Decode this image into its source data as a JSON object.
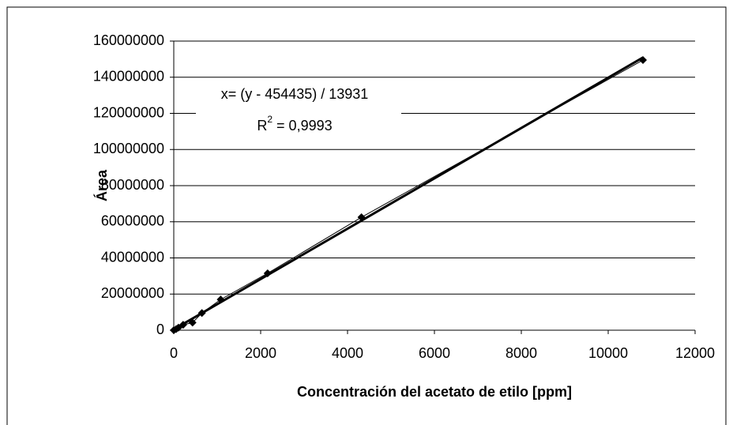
{
  "chart_data": {
    "type": "scatter",
    "x_label": "Concentración del acetato de etilo [ppm]",
    "y_label": "Área",
    "annotations": {
      "equation": "x= (y - 454435) / 13931",
      "r2": {
        "text": "R",
        "sup": "2",
        "rest": " = 0,9993"
      }
    },
    "trendline": {
      "slope": 13931,
      "intercept": 454435
    },
    "series": [
      {
        "name": "Área",
        "color": "#000000",
        "x": [
          0,
          54,
          108,
          216,
          432,
          648,
          1080,
          2160,
          4320,
          10800
        ],
        "values": [
          0,
          600000,
          1400000,
          3000000,
          4200000,
          9500000,
          17000000,
          31500000,
          62500000,
          149500000
        ]
      }
    ],
    "xlim": [
      0,
      12000
    ],
    "xticks": [
      0,
      2000,
      4000,
      6000,
      8000,
      10000,
      12000
    ],
    "ylim": [
      0,
      160000000
    ],
    "yticks": [
      0,
      20000000,
      40000000,
      60000000,
      80000000,
      100000000,
      120000000,
      140000000,
      160000000
    ],
    "grid": true
  }
}
